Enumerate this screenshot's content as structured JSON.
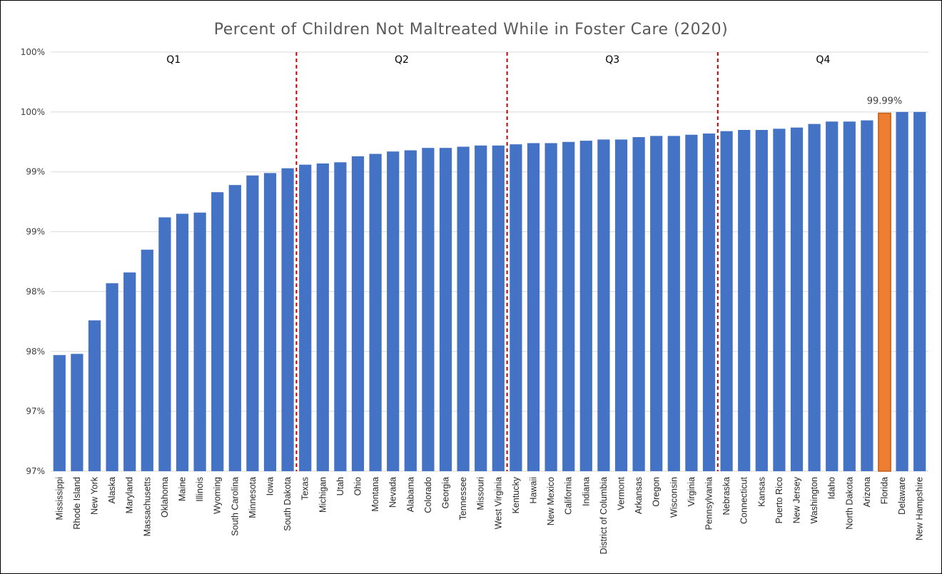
{
  "chart_data": {
    "type": "bar",
    "title": "Percent of Children Not Maltreated While in Foster Care (2020)",
    "xlabel": "",
    "ylabel": "",
    "ylim": [
      97.0,
      100.5
    ],
    "y_ticks": [
      97.0,
      97.5,
      98.0,
      98.5,
      99.0,
      99.5,
      100.0,
      100.5
    ],
    "y_tick_labels": [
      "97%",
      "97%",
      "98%",
      "98%",
      "99%",
      "99%",
      "100%",
      "100%"
    ],
    "grid": true,
    "legend": "none",
    "categories": [
      "Mississippi",
      "Rhode Island",
      "New York",
      "Alaska",
      "Maryland",
      "Massachusetts",
      "Oklahoma",
      "Maine",
      "Illinois",
      "Wyoming",
      "South Carolina",
      "Minnesota",
      "Iowa",
      "South Dakota",
      "Texas",
      "Michigan",
      "Utah",
      "Ohio",
      "Montana",
      "Nevada",
      "Alabama",
      "Colorado",
      "Georgia",
      "Tennessee",
      "Missouri",
      "West Virginia",
      "Kentucky",
      "Hawaii",
      "New Mexico",
      "California",
      "Indiana",
      "District of Columbia",
      "Vermont",
      "Arkansas",
      "Oregon",
      "Wisconsin",
      "Virginia",
      "Pennsylvania",
      "Nebraska",
      "Connecticut",
      "Kansas",
      "Puerto Rico",
      "New Jersey",
      "Washington",
      "Idaho",
      "North Dakota",
      "Arizona",
      "Florida",
      "Delaware",
      "New Hampshire"
    ],
    "values": [
      97.97,
      97.98,
      98.26,
      98.57,
      98.66,
      98.85,
      99.12,
      99.15,
      99.16,
      99.33,
      99.39,
      99.47,
      99.49,
      99.53,
      99.56,
      99.57,
      99.58,
      99.63,
      99.65,
      99.67,
      99.68,
      99.7,
      99.7,
      99.71,
      99.72,
      99.72,
      99.73,
      99.74,
      99.74,
      99.75,
      99.76,
      99.77,
      99.77,
      99.79,
      99.8,
      99.8,
      99.81,
      99.82,
      99.84,
      99.85,
      99.85,
      99.86,
      99.87,
      99.9,
      99.92,
      99.92,
      99.93,
      99.99,
      100.0,
      100.0
    ],
    "bar_color": "#4472C4",
    "highlight": {
      "category": "Florida",
      "color": "#ED7D31",
      "label": "99.99%"
    },
    "quartiles": [
      {
        "label": "Q1",
        "start": 0,
        "end": 13
      },
      {
        "label": "Q2",
        "start": 14,
        "end": 25
      },
      {
        "label": "Q3",
        "start": 26,
        "end": 37
      },
      {
        "label": "Q4",
        "start": 38,
        "end": 49
      }
    ],
    "divider_color": "#C00000"
  }
}
